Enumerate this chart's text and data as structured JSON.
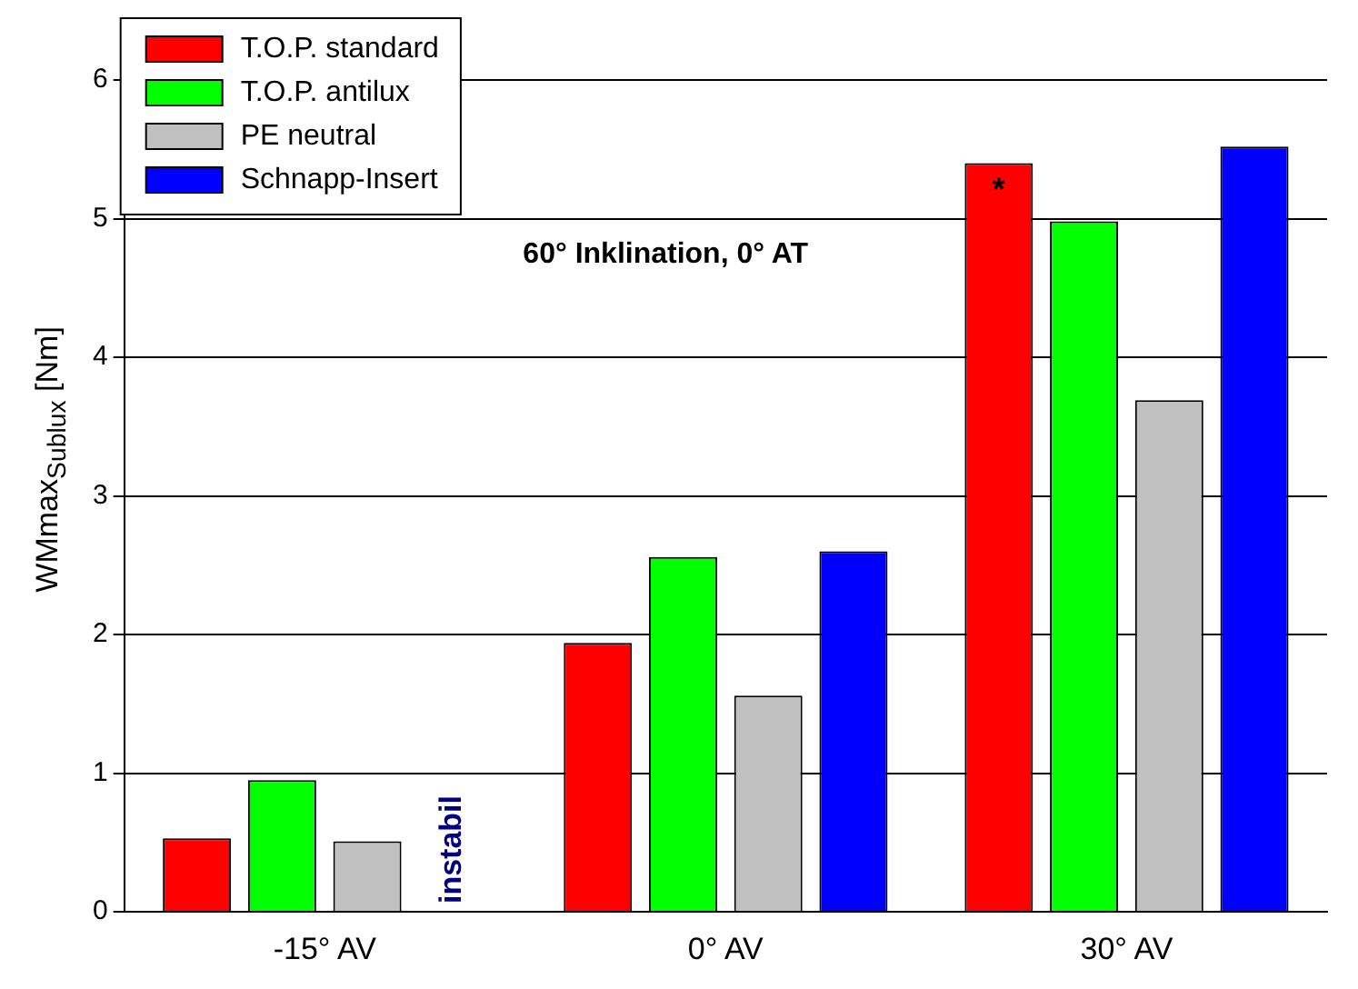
{
  "chart_data": {
    "type": "bar",
    "ylabel": "WMmax$_{Sublux}$ [Nm]",
    "categories": [
      "-15° AV",
      "0° AV",
      "30° AV"
    ],
    "series": [
      {
        "name": "T.O.P. standard",
        "color": "#ff0000",
        "values": [
          0.53,
          1.94,
          5.4
        ]
      },
      {
        "name": "T.O.P. antilux",
        "color": "#00ff00",
        "values": [
          0.95,
          2.56,
          4.98
        ]
      },
      {
        "name": "PE neutral",
        "color": "#c0c0c0",
        "values": [
          0.51,
          1.56,
          3.69
        ]
      },
      {
        "name": "Schnapp-Insert",
        "color": "#0000ff",
        "values": [
          null,
          2.6,
          5.52
        ]
      }
    ],
    "ylim": [
      0,
      6
    ],
    "yticks": [
      0,
      1,
      2,
      3,
      4,
      5,
      6
    ],
    "grid": "y",
    "legend": "top left",
    "annotations": [
      "60° Inklination, 0° AT",
      "instabil",
      "*"
    ]
  }
}
